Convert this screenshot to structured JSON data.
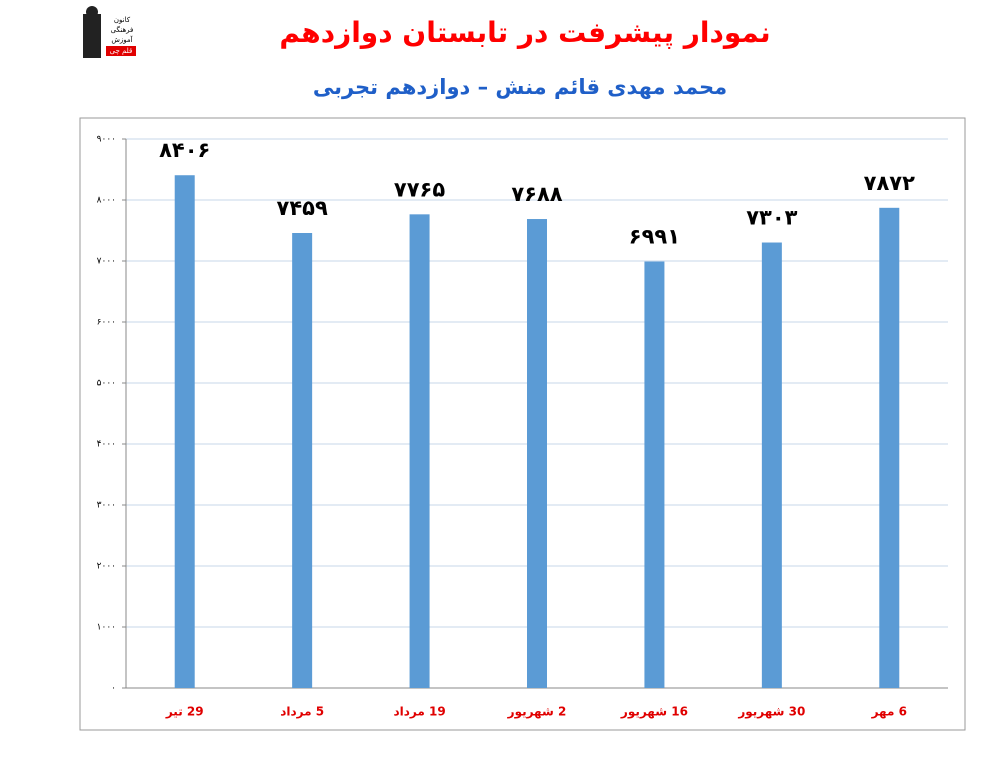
{
  "logo": {
    "lines": [
      "کانون",
      "فرهنگی",
      "آموزش",
      "قلم چی"
    ]
  },
  "chart_data": {
    "type": "bar",
    "title": "نمودار پیشرفت در تابستان دوازدهم",
    "subtitle": "محمد مهدی قائم منش – دوازدهم تجربی",
    "categories": [
      "29 تیر",
      "5 مرداد",
      "19 مرداد",
      "2 شهریور",
      "16 شهریور",
      "30 شهریور",
      "6 مهر"
    ],
    "values": [
      8406,
      7459,
      7765,
      7688,
      6991,
      7303,
      7872
    ],
    "value_labels": [
      "۸۴۰۶",
      "۷۴۵۹",
      "۷۷۶۵",
      "۷۶۸۸",
      "۶۹۹۱",
      "۷۳۰۳",
      "۷۸۷۲"
    ],
    "color": "#5b9bd5",
    "ylim": [
      0,
      9000
    ],
    "yticks": [
      {
        "value": 0,
        "label": "۰"
      },
      {
        "value": 1000,
        "label": "۱۰۰۰"
      },
      {
        "value": 2000,
        "label": "۲۰۰۰"
      },
      {
        "value": 3000,
        "label": "۳۰۰۰"
      },
      {
        "value": 4000,
        "label": "۴۰۰۰"
      },
      {
        "value": 5000,
        "label": "۵۰۰۰"
      },
      {
        "value": 6000,
        "label": "۶۰۰۰"
      },
      {
        "value": 7000,
        "label": "۷۰۰۰"
      },
      {
        "value": 8000,
        "label": "۸۰۰۰"
      },
      {
        "value": 9000,
        "label": "۹۰۰۰"
      }
    ],
    "grid": true
  }
}
